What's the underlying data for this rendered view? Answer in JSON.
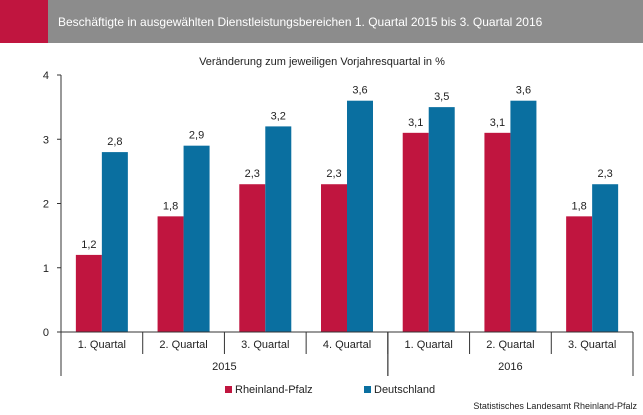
{
  "header": {
    "title": "Beschäftigte in ausgewählten Dienstleistungsbereichen 1. Quartal 2015 bis 3. Quartal 2016"
  },
  "colors": {
    "header_accent": "#c0153f",
    "header_bar": "#8c8c8c",
    "rheinland_pfalz": "#c0153f",
    "deutschland": "#0a6fa0"
  },
  "chart_data": {
    "type": "bar",
    "subtitle": "Veränderung zum jeweiligen Vorjahresquartal in %",
    "categories": [
      "1. Quartal",
      "2. Quartal",
      "3. Quartal",
      "4. Quartal",
      "1. Quartal",
      "2. Quartal",
      "3. Quartal"
    ],
    "groups": [
      {
        "label": "2015",
        "count": 4
      },
      {
        "label": "2016",
        "count": 3
      }
    ],
    "series": [
      {
        "name": "Rheinland-Pfalz",
        "color": "#c0153f",
        "values": [
          1.2,
          1.8,
          2.3,
          2.3,
          3.1,
          3.1,
          1.8
        ],
        "labels": [
          "1,2",
          "1,8",
          "2,3",
          "2,3",
          "3,1",
          "3,1",
          "1,8"
        ]
      },
      {
        "name": "Deutschland",
        "color": "#0a6fa0",
        "values": [
          2.8,
          2.9,
          3.2,
          3.6,
          3.5,
          3.6,
          2.3
        ],
        "labels": [
          "2,8",
          "2,9",
          "3,2",
          "3,6",
          "3,5",
          "3,6",
          "2,3"
        ]
      }
    ],
    "ylim": [
      0,
      4
    ],
    "yticks": [
      "0",
      "1",
      "2",
      "3",
      "4"
    ],
    "grid": false,
    "legend_position": "bottom-left",
    "source": "Statistisches Landesamt Rheinland-Pfalz"
  }
}
